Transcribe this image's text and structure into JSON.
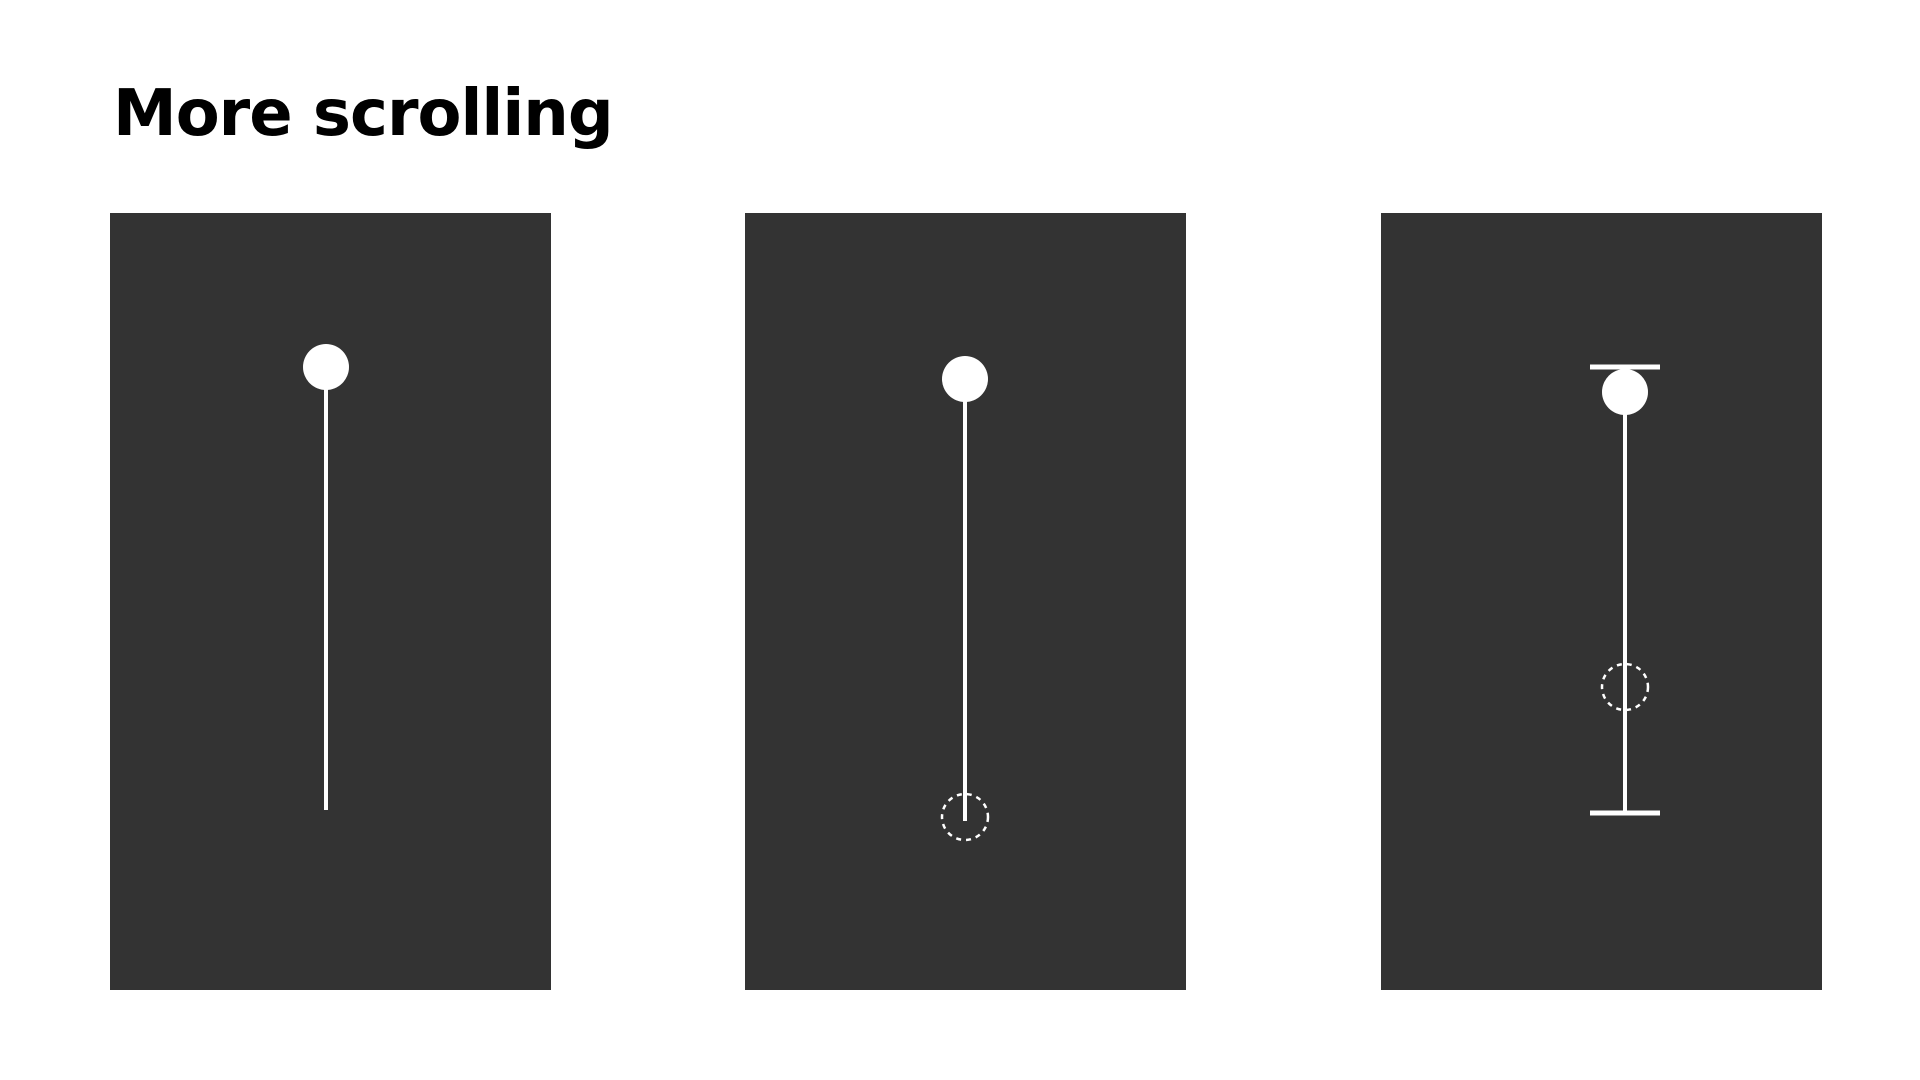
{
  "title": "More scrolling",
  "colors": {
    "background": "#ffffff",
    "panel": "#333333",
    "stroke": "#ffffff",
    "title": "#000000"
  },
  "panels": [
    {
      "id": "panel-1",
      "elements": [
        "solid-start-circle",
        "vertical-track-line"
      ]
    },
    {
      "id": "panel-2",
      "elements": [
        "solid-start-circle",
        "vertical-track-line",
        "dashed-end-circle"
      ]
    },
    {
      "id": "panel-3",
      "elements": [
        "top-limit-bar",
        "solid-start-circle",
        "vertical-track-line",
        "dashed-end-circle",
        "bottom-limit-bar"
      ]
    }
  ]
}
